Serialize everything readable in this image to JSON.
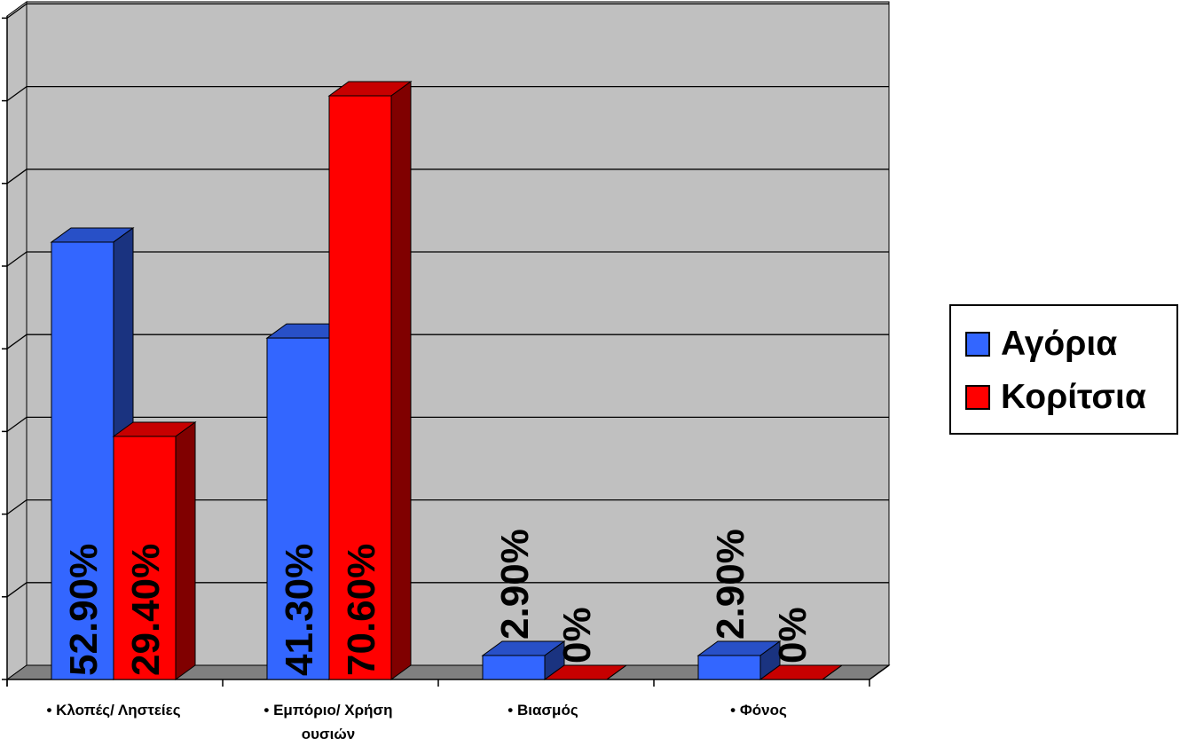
{
  "chart_data": {
    "type": "bar",
    "style": "3d-clustered-column",
    "categories": [
      "• Κλοπές/ Ληστείες",
      "• Εμπόριο/ Χρήση ουσιών",
      "• Βιασμός",
      "• Φόνος"
    ],
    "series": [
      {
        "name": "Αγόρια",
        "color": "#3366ff",
        "values": [
          52.9,
          41.3,
          2.9,
          2.9
        ],
        "labels": [
          "52.90%",
          "41.30%",
          "2.90%",
          "2.90%"
        ]
      },
      {
        "name": "Κορίτσια",
        "color": "#ff0000",
        "values": [
          29.4,
          70.6,
          0,
          0
        ],
        "labels": [
          "29.40%",
          "70.60%",
          "0%",
          "0%"
        ]
      }
    ],
    "ylim": [
      0,
      80
    ],
    "grid": true,
    "legend_position": "right",
    "wall_color": "#c0c0c0",
    "floor_color": "#808080"
  }
}
